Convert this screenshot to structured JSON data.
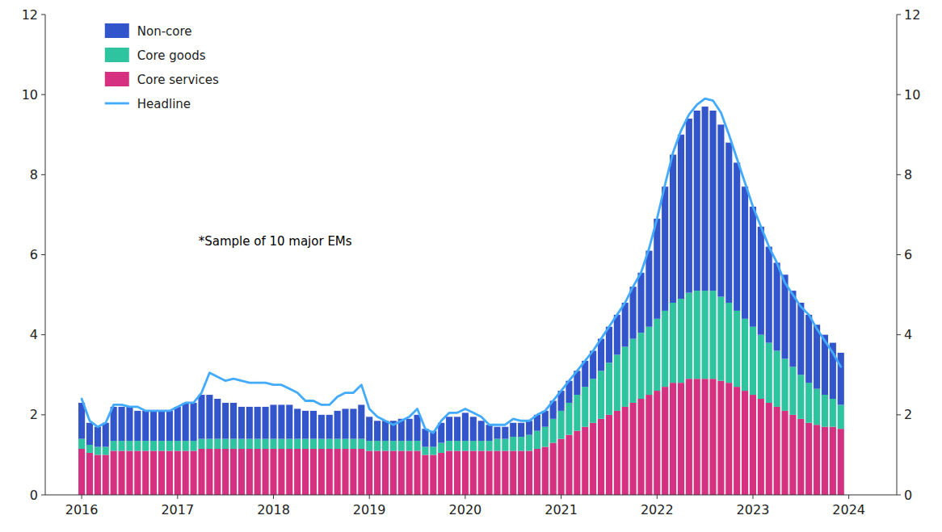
{
  "chart_data": {
    "type": "bar",
    "stacked": true,
    "annotations": [
      "*Sample of 10 major EMs"
    ],
    "x": [
      2016,
      2016.0833333333333,
      2016.1666666666667,
      2016.25,
      2016.3333333333333,
      2016.4166666666667,
      2016.5,
      2016.5833333333333,
      2016.6666666666667,
      2016.75,
      2016.8333333333333,
      2016.9166666666667,
      2017,
      2017.0833333333333,
      2017.1666666666667,
      2017.25,
      2017.3333333333333,
      2017.4166666666667,
      2017.5,
      2017.5833333333333,
      2017.6666666666667,
      2017.75,
      2017.8333333333333,
      2017.9166666666667,
      2018,
      2018.0833333333333,
      2018.1666666666667,
      2018.25,
      2018.3333333333333,
      2018.4166666666667,
      2018.5,
      2018.5833333333333,
      2018.6666666666667,
      2018.75,
      2018.8333333333333,
      2018.9166666666667,
      2019,
      2019.0833333333333,
      2019.1666666666667,
      2019.25,
      2019.3333333333333,
      2019.4166666666667,
      2019.5,
      2019.5833333333333,
      2019.6666666666667,
      2019.75,
      2019.8333333333333,
      2019.9166666666667,
      2020,
      2020.0833333333333,
      2020.1666666666667,
      2020.25,
      2020.3333333333333,
      2020.4166666666667,
      2020.5,
      2020.5833333333333,
      2020.6666666666667,
      2020.75,
      2020.8333333333333,
      2020.9166666666667,
      2021,
      2021.0833333333333,
      2021.1666666666667,
      2021.25,
      2021.3333333333333,
      2021.4166666666667,
      2021.5,
      2021.5833333333333,
      2021.6666666666667,
      2021.75,
      2021.8333333333333,
      2021.9166666666667,
      2022,
      2022.0833333333333,
      2022.1666666666667,
      2022.25,
      2022.3333333333333,
      2022.4166666666667,
      2022.5,
      2022.5833333333333,
      2022.6666666666667,
      2022.75,
      2022.8333333333333,
      2022.9166666666667,
      2023,
      2023.0833333333333,
      2023.1666666666667,
      2023.25,
      2023.3333333333333,
      2023.4166666666667,
      2023.5,
      2023.5833333333333,
      2023.6666666666667,
      2023.75,
      2023.8333333333333,
      2023.9166666666667
    ],
    "series": [
      {
        "name": "Core services",
        "type": "bar",
        "color": "#d63080",
        "values": [
          1.15,
          1.05,
          1.0,
          1.0,
          1.1,
          1.1,
          1.1,
          1.1,
          1.1,
          1.1,
          1.1,
          1.1,
          1.1,
          1.1,
          1.1,
          1.15,
          1.15,
          1.15,
          1.15,
          1.15,
          1.15,
          1.15,
          1.15,
          1.15,
          1.15,
          1.15,
          1.15,
          1.15,
          1.15,
          1.15,
          1.15,
          1.15,
          1.15,
          1.15,
          1.15,
          1.15,
          1.1,
          1.1,
          1.1,
          1.1,
          1.1,
          1.1,
          1.1,
          1.0,
          1.0,
          1.05,
          1.1,
          1.1,
          1.1,
          1.1,
          1.1,
          1.1,
          1.1,
          1.1,
          1.1,
          1.1,
          1.1,
          1.15,
          1.2,
          1.3,
          1.4,
          1.5,
          1.6,
          1.7,
          1.8,
          1.9,
          2.0,
          2.1,
          2.2,
          2.3,
          2.4,
          2.5,
          2.6,
          2.7,
          2.8,
          2.8,
          2.9,
          2.9,
          2.9,
          2.9,
          2.85,
          2.8,
          2.7,
          2.6,
          2.5,
          2.4,
          2.3,
          2.2,
          2.1,
          2.0,
          1.9,
          1.8,
          1.75,
          1.7,
          1.7,
          1.65
        ]
      },
      {
        "name": "Core goods",
        "type": "bar",
        "color": "#2ec4a0",
        "values": [
          0.25,
          0.2,
          0.2,
          0.2,
          0.25,
          0.25,
          0.25,
          0.25,
          0.25,
          0.25,
          0.25,
          0.25,
          0.25,
          0.25,
          0.25,
          0.25,
          0.25,
          0.25,
          0.25,
          0.25,
          0.25,
          0.25,
          0.25,
          0.25,
          0.25,
          0.25,
          0.25,
          0.25,
          0.25,
          0.25,
          0.25,
          0.25,
          0.25,
          0.25,
          0.25,
          0.25,
          0.25,
          0.25,
          0.25,
          0.25,
          0.25,
          0.25,
          0.25,
          0.2,
          0.2,
          0.25,
          0.25,
          0.25,
          0.25,
          0.25,
          0.25,
          0.25,
          0.3,
          0.3,
          0.35,
          0.35,
          0.4,
          0.45,
          0.5,
          0.6,
          0.7,
          0.8,
          0.9,
          1.0,
          1.1,
          1.2,
          1.3,
          1.4,
          1.5,
          1.6,
          1.65,
          1.7,
          1.8,
          1.9,
          2.0,
          2.1,
          2.15,
          2.2,
          2.2,
          2.2,
          2.1,
          2.0,
          1.9,
          1.8,
          1.7,
          1.6,
          1.5,
          1.4,
          1.3,
          1.2,
          1.1,
          1.0,
          0.9,
          0.8,
          0.7,
          0.6
        ]
      },
      {
        "name": "Non-core",
        "type": "bar",
        "color": "#3355cc",
        "values": [
          0.9,
          0.55,
          0.5,
          0.6,
          0.85,
          0.85,
          0.85,
          0.75,
          0.75,
          0.75,
          0.75,
          0.75,
          0.85,
          0.95,
          0.95,
          1.1,
          1.1,
          1.0,
          0.9,
          0.9,
          0.8,
          0.8,
          0.8,
          0.8,
          0.85,
          0.85,
          0.85,
          0.75,
          0.7,
          0.7,
          0.6,
          0.6,
          0.7,
          0.75,
          0.75,
          0.85,
          0.6,
          0.5,
          0.5,
          0.5,
          0.55,
          0.55,
          0.65,
          0.45,
          0.4,
          0.5,
          0.6,
          0.6,
          0.7,
          0.6,
          0.5,
          0.4,
          0.3,
          0.3,
          0.35,
          0.35,
          0.35,
          0.4,
          0.4,
          0.45,
          0.5,
          0.55,
          0.6,
          0.65,
          0.7,
          0.8,
          0.9,
          1.0,
          1.1,
          1.3,
          1.5,
          1.9,
          2.5,
          3.1,
          3.7,
          4.1,
          4.35,
          4.5,
          4.6,
          4.5,
          4.3,
          4.0,
          3.7,
          3.3,
          3.0,
          2.7,
          2.4,
          2.2,
          2.1,
          1.9,
          1.8,
          1.7,
          1.6,
          1.5,
          1.4,
          1.3
        ]
      },
      {
        "name": "Headline",
        "type": "line",
        "color": "#42aaff",
        "values": [
          2.4,
          1.85,
          1.7,
          1.8,
          2.25,
          2.25,
          2.2,
          2.2,
          2.1,
          2.1,
          2.1,
          2.1,
          2.2,
          2.3,
          2.3,
          2.55,
          3.05,
          2.95,
          2.85,
          2.9,
          2.85,
          2.8,
          2.8,
          2.8,
          2.75,
          2.75,
          2.65,
          2.55,
          2.35,
          2.35,
          2.25,
          2.25,
          2.45,
          2.55,
          2.55,
          2.75,
          2.15,
          1.95,
          1.85,
          1.75,
          1.85,
          1.95,
          2.15,
          1.65,
          1.55,
          1.85,
          2.05,
          2.05,
          2.15,
          2.05,
          1.95,
          1.75,
          1.75,
          1.75,
          1.9,
          1.85,
          1.85,
          2.0,
          2.1,
          2.35,
          2.6,
          2.85,
          3.1,
          3.35,
          3.6,
          3.9,
          4.2,
          4.5,
          4.8,
          5.2,
          5.55,
          6.15,
          6.9,
          7.75,
          8.55,
          9.1,
          9.5,
          9.75,
          9.9,
          9.85,
          9.55,
          9.0,
          8.4,
          7.8,
          7.2,
          6.7,
          6.2,
          5.8,
          5.3,
          5.0,
          4.7,
          4.5,
          4.15,
          3.85,
          3.55,
          3.2
        ]
      }
    ],
    "xlim": [
      2015.62,
      2024.5
    ],
    "xticks": [
      2016,
      2017,
      2018,
      2019,
      2020,
      2021,
      2022,
      2023,
      2024
    ],
    "ylim": [
      0,
      12
    ],
    "yticks": [
      0,
      2,
      4,
      6,
      8,
      10,
      12
    ],
    "y2lim": [
      0,
      12
    ],
    "y2ticks": [
      0,
      2,
      4,
      6,
      8,
      10,
      12
    ],
    "grid": false,
    "legend": "upper left"
  }
}
